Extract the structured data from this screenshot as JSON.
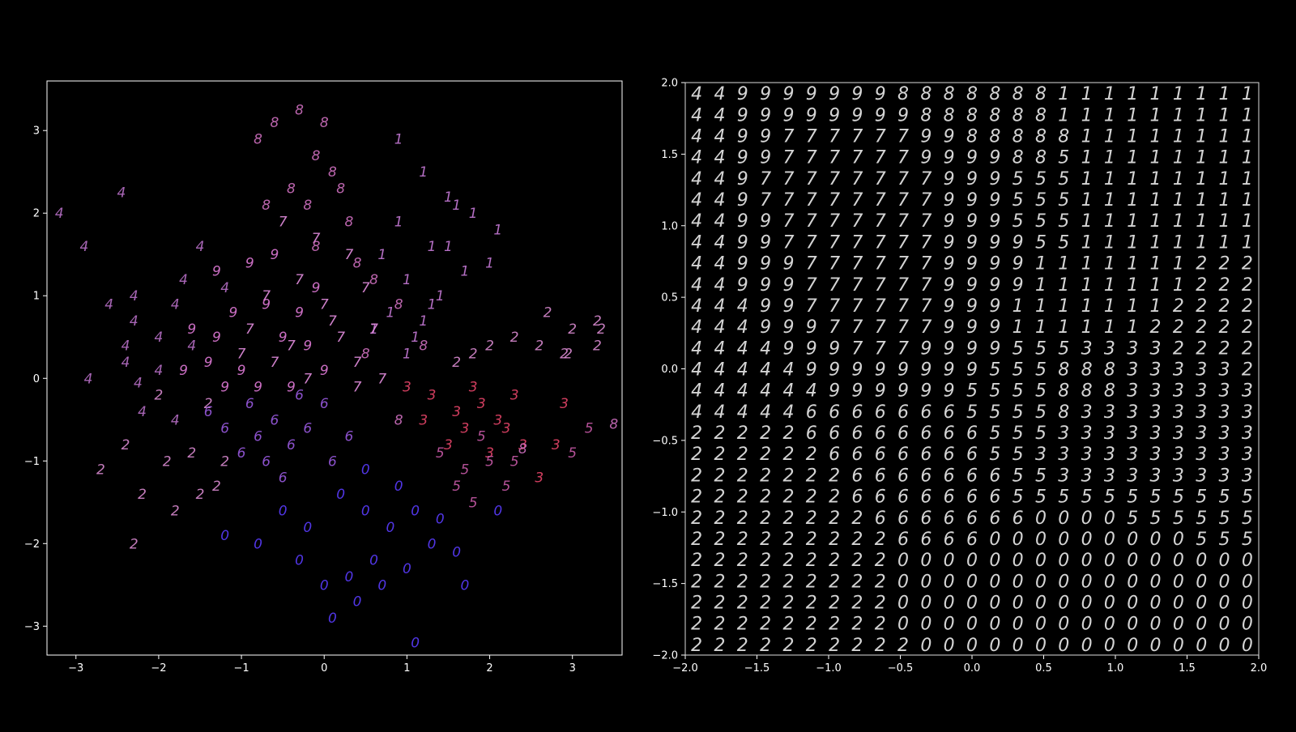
{
  "chart_data": [
    {
      "type": "scatter",
      "title": "",
      "xlabel": "",
      "ylabel": "",
      "xlim": [
        -3.35,
        3.6
      ],
      "ylim": [
        -3.35,
        3.6
      ],
      "xticks": [
        -3,
        -2,
        -1,
        0,
        1,
        2,
        3
      ],
      "yticks": [
        -3,
        -2,
        -1,
        0,
        1,
        2,
        3
      ],
      "xtick_labels": [
        "−3",
        "−2",
        "−1",
        "0",
        "1",
        "2",
        "3"
      ],
      "ytick_labels": [
        "−3",
        "−2",
        "−1",
        "0",
        "1",
        "2",
        "3"
      ],
      "grid": false,
      "marker": "digit glyphs",
      "series": [
        {
          "name": "0",
          "color": "#5a3cff",
          "points": [
            [
              0.2,
              -1.4
            ],
            [
              0.5,
              -1.6
            ],
            [
              0.8,
              -1.8
            ],
            [
              1.1,
              -1.6
            ],
            [
              1.3,
              -2.0
            ],
            [
              0.6,
              -2.2
            ],
            [
              0.3,
              -2.4
            ],
            [
              1.6,
              -2.1
            ],
            [
              0.0,
              -2.5
            ],
            [
              -0.3,
              -2.2
            ],
            [
              1.0,
              -2.3
            ],
            [
              0.4,
              -2.7
            ],
            [
              1.7,
              -2.5
            ],
            [
              -0.5,
              -1.6
            ],
            [
              -1.2,
              -1.9
            ],
            [
              0.1,
              -2.9
            ],
            [
              1.1,
              -3.2
            ],
            [
              0.9,
              -1.3
            ],
            [
              -0.8,
              -2.0
            ],
            [
              2.1,
              -1.6
            ],
            [
              0.7,
              -2.5
            ],
            [
              1.4,
              -1.7
            ],
            [
              -0.2,
              -1.8
            ],
            [
              0.5,
              -1.1
            ]
          ]
        },
        {
          "name": "1",
          "color": "#c77ad8",
          "points": [
            [
              0.9,
              2.9
            ],
            [
              1.2,
              2.5
            ],
            [
              1.5,
              2.2
            ],
            [
              1.8,
              2.0
            ],
            [
              2.0,
              1.4
            ],
            [
              1.3,
              1.6
            ],
            [
              1.0,
              1.2
            ],
            [
              0.8,
              0.8
            ],
            [
              1.4,
              1.0
            ],
            [
              1.7,
              1.3
            ],
            [
              1.1,
              0.5
            ],
            [
              0.7,
              1.5
            ],
            [
              1.6,
              2.1
            ],
            [
              2.1,
              1.8
            ],
            [
              0.9,
              1.9
            ],
            [
              1.3,
              0.9
            ],
            [
              1.0,
              0.3
            ],
            [
              1.2,
              0.7
            ],
            [
              1.5,
              1.6
            ],
            [
              0.6,
              0.6
            ]
          ]
        },
        {
          "name": "2",
          "color": "#d98ad0",
          "points": [
            [
              2.7,
              0.8
            ],
            [
              3.0,
              0.6
            ],
            [
              3.35,
              0.6
            ],
            [
              2.3,
              0.5
            ],
            [
              2.6,
              0.4
            ],
            [
              2.9,
              0.3
            ],
            [
              3.3,
              0.4
            ],
            [
              2.0,
              0.4
            ],
            [
              1.8,
              0.3
            ],
            [
              1.6,
              0.2
            ],
            [
              -2.7,
              -1.1
            ],
            [
              -2.4,
              -0.8
            ],
            [
              -2.2,
              -1.4
            ],
            [
              -2.3,
              -2.0
            ],
            [
              -1.8,
              -1.6
            ],
            [
              -1.5,
              -1.4
            ],
            [
              -1.9,
              -1.0
            ],
            [
              -1.6,
              -0.9
            ],
            [
              -1.2,
              -1.0
            ],
            [
              -2.0,
              -0.2
            ],
            [
              -1.4,
              -0.3
            ],
            [
              2.95,
              0.3
            ],
            [
              3.3,
              0.7
            ],
            [
              -1.3,
              -1.3
            ]
          ]
        },
        {
          "name": "3",
          "color": "#e8456a",
          "points": [
            [
              1.0,
              -0.1
            ],
            [
              1.3,
              -0.2
            ],
            [
              1.6,
              -0.4
            ],
            [
              1.9,
              -0.3
            ],
            [
              2.2,
              -0.6
            ],
            [
              2.4,
              -0.8
            ],
            [
              2.0,
              -0.9
            ],
            [
              1.5,
              -0.8
            ],
            [
              2.3,
              -0.2
            ],
            [
              2.9,
              -0.3
            ],
            [
              2.8,
              -0.8
            ],
            [
              2.6,
              -1.2
            ],
            [
              1.2,
              -0.5
            ],
            [
              1.8,
              -0.1
            ],
            [
              2.1,
              -0.5
            ],
            [
              1.7,
              -0.6
            ]
          ]
        },
        {
          "name": "4",
          "color": "#b970c8",
          "points": [
            [
              -3.2,
              2.0
            ],
            [
              -2.9,
              1.6
            ],
            [
              -2.45,
              2.25
            ],
            [
              -2.6,
              0.9
            ],
            [
              -2.3,
              0.7
            ],
            [
              -2.0,
              0.5
            ],
            [
              -2.4,
              0.2
            ],
            [
              -2.85,
              0.0
            ],
            [
              -2.25,
              -0.05
            ],
            [
              -2.0,
              0.1
            ],
            [
              -1.8,
              0.9
            ],
            [
              -1.5,
              1.6
            ],
            [
              -1.7,
              1.2
            ],
            [
              -2.3,
              1.0
            ],
            [
              -1.2,
              1.1
            ],
            [
              -1.6,
              0.4
            ],
            [
              -2.2,
              -0.4
            ],
            [
              -1.8,
              -0.5
            ],
            [
              -2.4,
              0.4
            ]
          ]
        },
        {
          "name": "5",
          "color": "#c85aa8",
          "points": [
            [
              1.4,
              -0.9
            ],
            [
              1.7,
              -1.1
            ],
            [
              2.0,
              -1.0
            ],
            [
              2.3,
              -1.0
            ],
            [
              1.8,
              -1.5
            ],
            [
              2.2,
              -1.3
            ],
            [
              3.2,
              -0.6
            ],
            [
              3.0,
              -0.9
            ],
            [
              1.6,
              -1.3
            ],
            [
              1.9,
              -0.7
            ]
          ]
        },
        {
          "name": "6",
          "color": "#9a5ae0",
          "points": [
            [
              -0.6,
              -0.5
            ],
            [
              -0.9,
              -0.3
            ],
            [
              -0.4,
              -0.8
            ],
            [
              -0.2,
              -0.6
            ],
            [
              -1.2,
              -0.6
            ],
            [
              -0.7,
              -1.0
            ],
            [
              0.0,
              -0.3
            ],
            [
              0.3,
              -0.7
            ],
            [
              -1.0,
              -0.9
            ],
            [
              -0.5,
              -1.2
            ],
            [
              -0.3,
              -0.2
            ],
            [
              0.1,
              -1.0
            ],
            [
              -0.8,
              -0.7
            ],
            [
              -1.4,
              -0.4
            ]
          ]
        },
        {
          "name": "7",
          "color": "#e58ee0",
          "points": [
            [
              -0.5,
              1.9
            ],
            [
              -0.1,
              1.7
            ],
            [
              0.3,
              1.5
            ],
            [
              0.5,
              1.1
            ],
            [
              -0.3,
              1.2
            ],
            [
              -0.7,
              1.0
            ],
            [
              0.0,
              0.9
            ],
            [
              0.2,
              0.5
            ],
            [
              -0.9,
              0.6
            ],
            [
              -0.4,
              0.4
            ],
            [
              0.4,
              0.2
            ],
            [
              0.7,
              0.0
            ],
            [
              -0.2,
              0.0
            ],
            [
              -0.6,
              0.2
            ],
            [
              0.1,
              0.7
            ],
            [
              0.6,
              0.6
            ],
            [
              -1.0,
              0.3
            ],
            [
              0.4,
              -0.1
            ]
          ]
        },
        {
          "name": "8",
          "color": "#d070c0",
          "points": [
            [
              -0.6,
              3.1
            ],
            [
              -0.3,
              3.25
            ],
            [
              0.0,
              3.1
            ],
            [
              -0.8,
              2.9
            ],
            [
              -0.1,
              2.7
            ],
            [
              0.1,
              2.5
            ],
            [
              -0.4,
              2.3
            ],
            [
              -0.2,
              2.1
            ],
            [
              0.2,
              2.3
            ],
            [
              -0.7,
              2.1
            ],
            [
              0.3,
              1.9
            ],
            [
              -0.1,
              1.6
            ],
            [
              0.4,
              1.4
            ],
            [
              0.6,
              1.2
            ],
            [
              0.9,
              0.9
            ],
            [
              0.5,
              0.3
            ],
            [
              1.2,
              0.4
            ],
            [
              0.9,
              -0.5
            ],
            [
              3.5,
              -0.55
            ],
            [
              2.4,
              -0.85
            ]
          ]
        },
        {
          "name": "9",
          "color": "#e07ad8",
          "points": [
            [
              -1.6,
              0.6
            ],
            [
              -1.3,
              0.5
            ],
            [
              -1.0,
              0.1
            ],
            [
              -0.8,
              -0.1
            ],
            [
              -1.1,
              0.8
            ],
            [
              -0.7,
              0.9
            ],
            [
              -1.4,
              0.2
            ],
            [
              -0.5,
              0.5
            ],
            [
              -0.3,
              0.8
            ],
            [
              -0.9,
              1.4
            ],
            [
              -1.3,
              1.3
            ],
            [
              -0.6,
              1.5
            ],
            [
              -1.7,
              0.1
            ],
            [
              -0.2,
              0.4
            ],
            [
              0.0,
              0.1
            ],
            [
              -1.2,
              -0.1
            ],
            [
              -0.1,
              1.1
            ],
            [
              -0.4,
              -0.1
            ]
          ]
        }
      ]
    },
    {
      "type": "heatmap",
      "title": "",
      "xlabel": "",
      "ylabel": "",
      "xlim": [
        -2.0,
        2.0
      ],
      "ylim": [
        -2.0,
        2.0
      ],
      "xticks": [
        -2.0,
        -1.5,
        -1.0,
        -0.5,
        0.0,
        0.5,
        1.0,
        1.5,
        2.0
      ],
      "yticks": [
        -2.0,
        -1.5,
        -1.0,
        -0.5,
        0.0,
        0.5,
        1.0,
        1.5,
        2.0
      ],
      "xtick_labels": [
        "−2.0",
        "−1.5",
        "−1.0",
        "−0.5",
        "0.0",
        "0.5",
        "1.0",
        "1.5",
        "2.0"
      ],
      "ytick_labels": [
        "−2.0",
        "−1.5",
        "−1.0",
        "−0.5",
        "0.0",
        "0.5",
        "1.0",
        "1.5",
        "2.0"
      ],
      "grid": false,
      "rows": [
        "4499999998888888111111111",
        "4499999999888888111111111",
        "4499777777998888811111111",
        "4499777777999988511111111",
        "4497777777799955511111111",
        "4497777777799955511111111",
        "4499777777799955511111111",
        "4499777777799995511111111",
        "4499977777799991111111222",
        "4499977777799991111111222",
        "4449977777799911111112222",
        "4449997777799911111122222",
        "4444999777999955533332222",
        "4444499999999555888333332",
        "4444449999995555888333333",
        "4444466666665555833333333",
        "2222266666666555333333333",
        "2222226666666553333333333",
        "2222222666666655333333333",
        "2222222666666655555555555",
        "2222222266666660000555555",
        "2222222226666000000000555",
        "2222222220000000000000000",
        "2222222220000000000000000",
        "2222222220000000000000000",
        "2222222220000000000000000",
        "2222222222000000000000000"
      ]
    }
  ]
}
